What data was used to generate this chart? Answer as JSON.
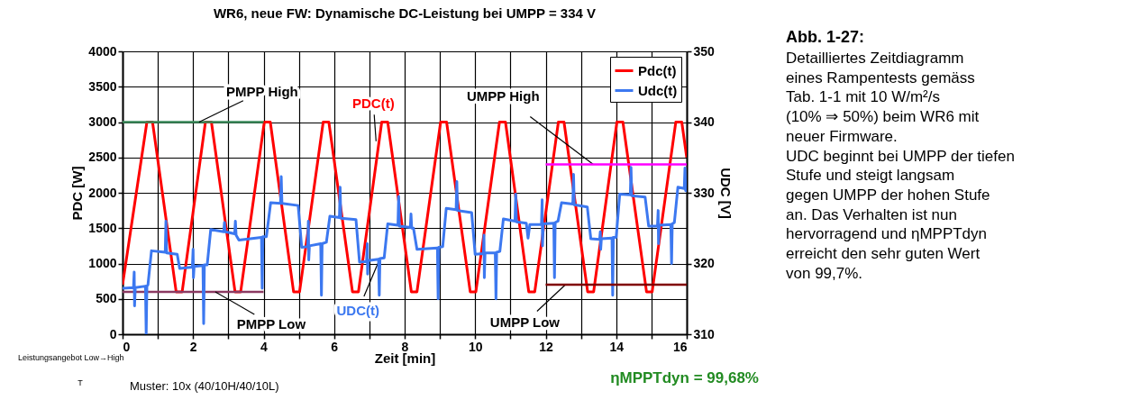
{
  "chart_data": {
    "type": "line",
    "title": "WR6, neue FW: Dynamische DC-Leistung bei UMPP = 334 V",
    "xlabel": "Zeit [min]",
    "ylabel": "PDC [W]",
    "y2label": "UDC [V]",
    "xlim": [
      0,
      16
    ],
    "xticks": [
      0,
      {
        "value": 1,
        "label": null
      },
      2,
      {
        "value": 3,
        "label": null
      },
      4,
      {
        "value": 5,
        "label": null
      },
      6,
      {
        "value": 7,
        "label": null
      },
      8,
      {
        "value": 9,
        "label": null
      },
      10,
      {
        "value": 11,
        "label": null
      },
      12,
      {
        "value": 13,
        "label": null
      },
      14,
      {
        "value": 15,
        "label": null
      },
      16
    ],
    "ylim": [
      0,
      4000
    ],
    "yticks": [
      0,
      500,
      1000,
      1500,
      2000,
      2500,
      3000,
      3500,
      4000
    ],
    "y2lim": [
      310,
      350
    ],
    "y2ticks": [
      310,
      320,
      330,
      340,
      350
    ],
    "grid": true,
    "legend": "top right",
    "line_style": "solid",
    "series": [
      {
        "name": "Pdc(t)",
        "color": "#ff0000",
        "axis": "y",
        "x": [
          0,
          0.69,
          0.85,
          1.52,
          1.69,
          2.35,
          2.52,
          3.19,
          3.35,
          4.02,
          4.19,
          4.85,
          5.02,
          5.69,
          5.85,
          6.52,
          6.69,
          7.35,
          7.52,
          8.19,
          8.35,
          9.02,
          9.19,
          9.86,
          10.02,
          10.69,
          10.86,
          11.52,
          11.69,
          12.36,
          12.52,
          13.19,
          13.36,
          14.02,
          14.19,
          14.86,
          15.02,
          15.69,
          15.86,
          16
        ],
        "values": [
          700,
          3000,
          3000,
          600,
          600,
          3000,
          3000,
          600,
          600,
          3000,
          3000,
          600,
          600,
          3000,
          3000,
          600,
          600,
          3000,
          3000,
          600,
          600,
          3000,
          3000,
          600,
          600,
          3000,
          3000,
          600,
          600,
          3000,
          3000,
          600,
          600,
          3000,
          3000,
          600,
          600,
          3000,
          3000,
          2500
        ]
      },
      {
        "name": "Udc(t)",
        "color": "#3c78f0",
        "axis": "y2",
        "x": [
          0,
          0.31,
          0.33,
          0.34,
          0.36,
          0.65,
          0.67,
          0.69,
          0.72,
          0.82,
          1.21,
          1.23,
          1.25,
          1.55,
          1.62,
          1.98,
          2.0,
          2.01,
          2.03,
          2.28,
          2.3,
          2.32,
          2.4,
          2.5,
          2.87,
          2.89,
          2.91,
          3.18,
          3.2,
          3.22,
          3.3,
          3.94,
          3.96,
          3.98,
          4.08,
          4.2,
          4.48,
          4.5,
          4.52,
          4.98,
          5.08,
          5.25,
          5.27,
          5.28,
          5.3,
          5.62,
          5.64,
          5.66,
          5.78,
          5.88,
          6.15,
          6.17,
          6.19,
          6.62,
          6.72,
          6.92,
          6.94,
          6.95,
          6.97,
          7.26,
          7.28,
          7.3,
          7.42,
          7.52,
          7.81,
          7.83,
          7.85,
          8.16,
          8.18,
          8.2,
          8.25,
          8.35,
          8.93,
          8.95,
          8.97,
          9.08,
          9.18,
          9.46,
          9.48,
          9.5,
          9.9,
          10.0,
          10.23,
          10.25,
          10.26,
          10.28,
          10.57,
          10.59,
          10.61,
          10.7,
          10.8,
          11.13,
          11.15,
          11.17,
          11.45,
          11.5,
          11.55,
          11.88,
          11.9,
          11.91,
          11.93,
          12.23,
          12.25,
          12.27,
          12.35,
          12.45,
          12.77,
          12.79,
          12.81,
          13.18,
          13.28,
          13.53,
          13.55,
          13.56,
          13.58,
          13.88,
          13.9,
          13.92,
          14.0,
          14.1,
          14.4,
          14.42,
          14.44,
          14.82,
          14.92,
          15.17,
          15.19,
          15.2,
          15.22,
          15.55,
          15.57,
          15.59,
          15.65,
          15.75,
          15.93,
          15.95,
          15.97,
          16
        ],
        "values": [
          316.5,
          316.6,
          318.8,
          314,
          316.6,
          316.8,
          310,
          316.8,
          317,
          321.8,
          321.6,
          326,
          321.5,
          321.3,
          319.3,
          319.5,
          322,
          318,
          319.6,
          319.7,
          311.5,
          319.8,
          319.8,
          324.8,
          324.5,
          325.8,
          324.5,
          324.2,
          326,
          324,
          323.3,
          323.7,
          316.5,
          323.8,
          323.8,
          328.6,
          328.5,
          332.3,
          328.5,
          328.2,
          322.3,
          322.4,
          326,
          320.5,
          322.5,
          322.8,
          315.5,
          322.8,
          323,
          326.7,
          326.5,
          330.8,
          326.4,
          326.2,
          320.2,
          320.3,
          322.8,
          318.5,
          320.4,
          320.6,
          315.5,
          320.7,
          320.8,
          325.6,
          325.4,
          329.5,
          325.3,
          325.1,
          327,
          325,
          325,
          322,
          322.2,
          315,
          322.3,
          322.4,
          327.8,
          327.6,
          331.6,
          327.5,
          327.2,
          321.3,
          321.4,
          324,
          318,
          321.5,
          321.5,
          315,
          321.6,
          321.7,
          326.3,
          326,
          329.8,
          325.9,
          325.7,
          323.6,
          325.5,
          325.5,
          329,
          322.5,
          325.6,
          325.7,
          318,
          325.8,
          326,
          328.6,
          328.4,
          332.6,
          328.3,
          328,
          323.5,
          323.4,
          324.5,
          322,
          323.5,
          323.6,
          315.5,
          323.7,
          323.7,
          329.8,
          329.7,
          333.6,
          329.6,
          329.4,
          325.3,
          325.3,
          327.5,
          322.8,
          325.4,
          325.5,
          320,
          325.6,
          325.8,
          330.8,
          330.6,
          333.5,
          330.3,
          330.3
        ]
      },
      {
        "color": "#3a8a5a",
        "axis": "y",
        "x": [
          0,
          4
        ],
        "values": [
          3000,
          3000
        ]
      },
      {
        "color": "#8b3a62",
        "axis": "y",
        "x": [
          0,
          4
        ],
        "values": [
          600,
          600
        ]
      },
      {
        "color": "#ff00ff",
        "axis": "y2",
        "x": [
          12,
          16
        ],
        "values": [
          334,
          334
        ]
      },
      {
        "color": "#800000",
        "axis": "y2",
        "x": [
          12,
          16
        ],
        "values": [
          317,
          317
        ]
      }
    ],
    "annotations": [
      {
        "text": "PMPP High",
        "x": 2.17,
        "y": 3000
      },
      {
        "text": "PMPP Low",
        "x": 2.63,
        "y": 600
      },
      {
        "text": "PDC(t)",
        "x": 7.19,
        "y": 2730
      },
      {
        "text": "UDC(t)",
        "x": 7.24,
        "y": 1000
      },
      {
        "text": "UMPP High",
        "x": 13.35,
        "y": 2400
      },
      {
        "text": "UMPP Low",
        "x": 12.56,
        "y": 700
      },
      "Muster: 10x (40/10H/40/10L)",
      "ηMPPTdyn = 99,68%",
      "Leistungsangebot Low→High",
      "T",
      "Abb. 1-27:",
      "Detailliertes Zeitdiagramm\neines Rampentests gemäss\nTab. 1-1 mit 10 W/m²/s\n(10% ⇒ 50%) beim WR6 mit\nneuer Firmware.\nUDC beginnt bei UMPP der tiefen\nStufe und steigt langsam\ngegen UMPP der hohen Stufe\nan. Das Verhalten ist nun\nhervorragend und ηMPPTdyn\nerreicht den sehr guten Wert\nvon 99,7%."
    ]
  }
}
